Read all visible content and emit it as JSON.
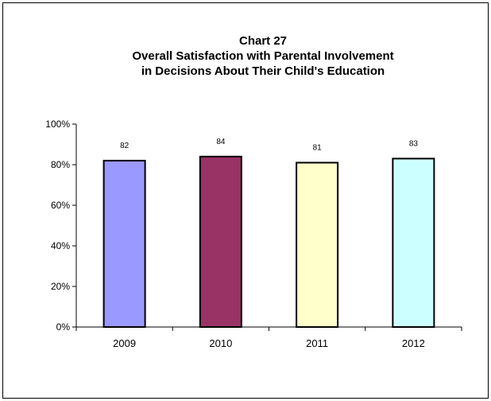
{
  "chart_data": {
    "type": "bar",
    "title": "Chart 27",
    "subtitle_lines": [
      "Overall Satisfaction with Parental Involvement",
      "in Decisions About Their Child's Education"
    ],
    "categories": [
      "2009",
      "2010",
      "2011",
      "2012"
    ],
    "values": [
      82,
      84,
      81,
      83
    ],
    "data_labels": [
      "82",
      "84",
      "81",
      "83"
    ],
    "ylim": [
      0,
      100
    ],
    "yticks": [
      0,
      20,
      40,
      60,
      80,
      100
    ],
    "ytick_labels": [
      "0%",
      "20%",
      "40%",
      "60%",
      "80%",
      "100%"
    ],
    "bar_colors": [
      "#9999ff",
      "#993366",
      "#ffffcc",
      "#ccffff"
    ],
    "grid": false,
    "legend": "none",
    "xlabel": "",
    "ylabel": ""
  }
}
